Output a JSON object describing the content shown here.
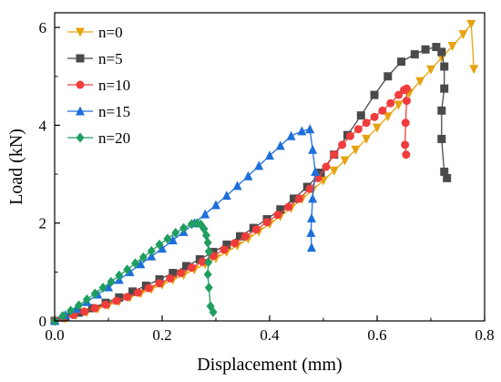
{
  "chart_data": {
    "type": "line",
    "xlabel": "Displacement (mm)",
    "ylabel": "Load (kN)",
    "xlim": [
      0,
      0.8
    ],
    "ylim": [
      0,
      6.3
    ],
    "xticks": [
      0.0,
      0.2,
      0.4,
      0.6,
      0.8
    ],
    "xtick_labels": [
      "0.0",
      "0.2",
      "0.4",
      "0.6",
      "0.8"
    ],
    "yticks": [
      0,
      2,
      4,
      6
    ],
    "ytick_labels": [
      "0",
      "2",
      "4",
      "6"
    ],
    "grid": false,
    "legend_position": "top-left",
    "series": [
      {
        "name": "n=0",
        "color": "#e6a30f",
        "marker": "triangle-down",
        "x": [
          0.0,
          0.02,
          0.04,
          0.06,
          0.08,
          0.1,
          0.12,
          0.14,
          0.16,
          0.18,
          0.2,
          0.22,
          0.24,
          0.26,
          0.28,
          0.3,
          0.32,
          0.34,
          0.36,
          0.38,
          0.4,
          0.42,
          0.44,
          0.46,
          0.48,
          0.5,
          0.52,
          0.54,
          0.56,
          0.58,
          0.6,
          0.62,
          0.64,
          0.66,
          0.68,
          0.7,
          0.72,
          0.74,
          0.76,
          0.775,
          0.78
        ],
        "y": [
          0.0,
          0.05,
          0.12,
          0.18,
          0.25,
          0.32,
          0.4,
          0.48,
          0.56,
          0.65,
          0.74,
          0.84,
          0.94,
          1.05,
          1.16,
          1.28,
          1.41,
          1.54,
          1.68,
          1.83,
          1.98,
          2.14,
          2.31,
          2.49,
          2.68,
          2.87,
          3.07,
          3.28,
          3.5,
          3.72,
          3.95,
          4.18,
          4.42,
          4.66,
          4.9,
          5.14,
          5.38,
          5.62,
          5.86,
          6.07,
          5.15
        ]
      },
      {
        "name": "n=5",
        "color": "#4a4a4a",
        "marker": "square",
        "x": [
          0.0,
          0.02,
          0.045,
          0.07,
          0.095,
          0.12,
          0.145,
          0.17,
          0.195,
          0.22,
          0.245,
          0.27,
          0.295,
          0.32,
          0.345,
          0.37,
          0.395,
          0.42,
          0.445,
          0.47,
          0.495,
          0.52,
          0.545,
          0.57,
          0.595,
          0.62,
          0.645,
          0.67,
          0.69,
          0.71,
          0.72,
          0.725,
          0.725,
          0.72,
          0.72,
          0.725,
          0.73
        ],
        "y": [
          0.0,
          0.08,
          0.17,
          0.26,
          0.37,
          0.48,
          0.6,
          0.72,
          0.85,
          0.98,
          1.12,
          1.26,
          1.41,
          1.56,
          1.73,
          1.9,
          2.08,
          2.28,
          2.5,
          2.74,
          3.03,
          3.4,
          3.8,
          4.2,
          4.62,
          5.0,
          5.3,
          5.45,
          5.55,
          5.6,
          5.5,
          5.2,
          4.75,
          4.3,
          3.72,
          3.05,
          2.92
        ]
      },
      {
        "name": "n=10",
        "color": "#f03c3c",
        "marker": "circle",
        "x": [
          0.0,
          0.015,
          0.035,
          0.055,
          0.075,
          0.095,
          0.115,
          0.135,
          0.155,
          0.175,
          0.195,
          0.215,
          0.235,
          0.255,
          0.275,
          0.295,
          0.315,
          0.335,
          0.355,
          0.375,
          0.395,
          0.415,
          0.435,
          0.455,
          0.475,
          0.49,
          0.505,
          0.52,
          0.535,
          0.55,
          0.565,
          0.58,
          0.595,
          0.61,
          0.625,
          0.64,
          0.65,
          0.655,
          0.655,
          0.653,
          0.652,
          0.654
        ],
        "y": [
          0.0,
          0.06,
          0.12,
          0.19,
          0.26,
          0.33,
          0.41,
          0.49,
          0.58,
          0.67,
          0.77,
          0.87,
          0.98,
          1.09,
          1.21,
          1.33,
          1.46,
          1.59,
          1.73,
          1.87,
          2.02,
          2.17,
          2.33,
          2.5,
          2.7,
          2.92,
          3.15,
          3.4,
          3.6,
          3.78,
          3.92,
          4.05,
          4.17,
          4.3,
          4.45,
          4.62,
          4.72,
          4.75,
          4.5,
          4.05,
          3.6,
          3.4
        ]
      },
      {
        "name": "n=15",
        "color": "#1e6fd9",
        "marker": "triangle-up",
        "x": [
          0.0,
          0.02,
          0.04,
          0.06,
          0.08,
          0.1,
          0.12,
          0.14,
          0.16,
          0.18,
          0.2,
          0.22,
          0.24,
          0.26,
          0.28,
          0.3,
          0.32,
          0.34,
          0.36,
          0.38,
          0.4,
          0.42,
          0.44,
          0.46,
          0.475,
          0.48,
          0.485,
          0.48,
          0.478,
          0.477,
          0.478
        ],
        "y": [
          0.0,
          0.12,
          0.25,
          0.39,
          0.54,
          0.69,
          0.84,
          1.0,
          1.16,
          1.32,
          1.48,
          1.65,
          1.82,
          2.0,
          2.18,
          2.37,
          2.56,
          2.76,
          2.96,
          3.17,
          3.38,
          3.58,
          3.78,
          3.88,
          3.92,
          3.5,
          3.05,
          2.5,
          2.1,
          1.8,
          1.5
        ]
      },
      {
        "name": "n=20",
        "color": "#1f9e60",
        "marker": "diamond",
        "x": [
          0.0,
          0.015,
          0.03,
          0.045,
          0.06,
          0.075,
          0.09,
          0.105,
          0.12,
          0.135,
          0.15,
          0.165,
          0.18,
          0.195,
          0.21,
          0.225,
          0.24,
          0.255,
          0.265,
          0.272,
          0.278,
          0.282,
          0.285,
          0.287,
          0.286,
          0.285,
          0.287,
          0.29,
          0.295
        ],
        "y": [
          0.0,
          0.1,
          0.21,
          0.32,
          0.44,
          0.56,
          0.68,
          0.8,
          0.93,
          1.05,
          1.18,
          1.3,
          1.43,
          1.56,
          1.68,
          1.8,
          1.9,
          1.98,
          2.0,
          1.97,
          1.88,
          1.75,
          1.6,
          1.42,
          1.2,
          0.95,
          0.68,
          0.3,
          0.18
        ]
      }
    ]
  }
}
